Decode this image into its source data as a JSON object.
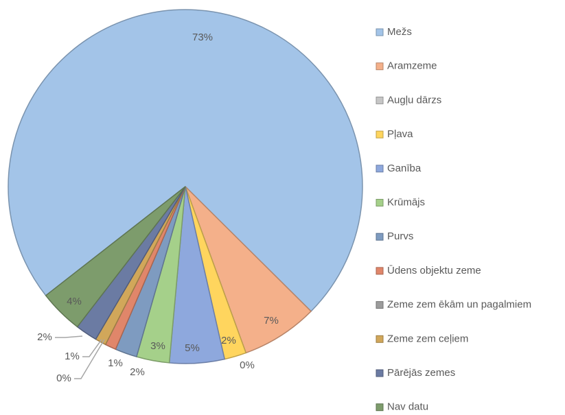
{
  "chart_data": {
    "type": "pie",
    "categories": [
      "Mežs",
      "Aramzeme",
      "Augļu dārzs",
      "Pļava",
      "Ganība",
      "Krūmājs",
      "Purvs",
      "Ūdens objektu zeme",
      "Zeme zem ēkām un pagalmiem",
      "Zeme zem ceļiem",
      "Pārējās zemes",
      "Nav datu"
    ],
    "values": [
      73,
      7,
      0,
      2,
      5,
      3,
      2,
      1,
      0,
      1,
      2,
      4
    ],
    "value_labels": [
      "73%",
      "7%",
      "0%",
      "2%",
      "5%",
      "3%",
      "2%",
      "1%",
      "0%",
      "1%",
      "2%",
      "4%"
    ],
    "colors": [
      "#a3c4e8",
      "#f4b08a",
      "#c6c6c6",
      "#ffd55e",
      "#8ea8dd",
      "#a5d08a",
      "#7e9bc0",
      "#e0866a",
      "#9c9c9c",
      "#d1a75a",
      "#6b7ba3",
      "#7d9c6c"
    ],
    "legend": "right"
  }
}
